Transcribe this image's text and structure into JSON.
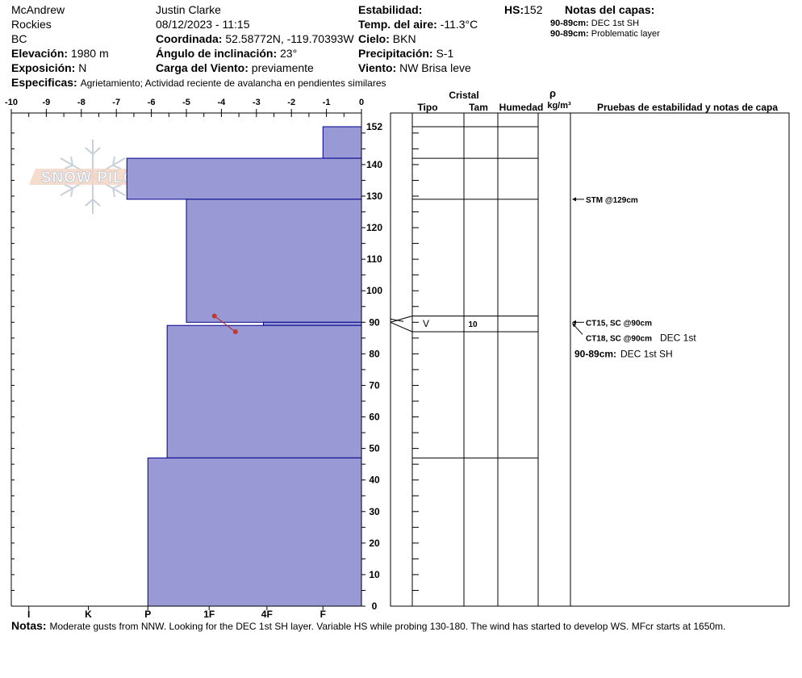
{
  "header": {
    "observer_location": "McAndrew",
    "range": "Rockies",
    "province": "BC",
    "elevation_label": "Elevación:",
    "elevation_value": "1980 m",
    "aspect_label": "Exposición:",
    "aspect_value": "N",
    "specifics_label": "Especificas:",
    "specifics_value": "Agrietamiento;  Actividad reciente de avalancha en pendientes similares",
    "observer": "Justin Clarke",
    "datetime": "08/12/2023 - 11:15",
    "coord_label": "Coordinada:",
    "coord_value": "52.58772N, -119.70393W",
    "slope_label": "Ángulo de inclinación:",
    "slope_value": "23°",
    "wind_load_label": "Carga del Viento:",
    "wind_load_value": "previamente",
    "stability_label": "Estabilidad:",
    "air_temp_label": "Temp. del aire:",
    "air_temp_value": "-11.3°C",
    "sky_label": "Cielo:",
    "sky_value": "BKN",
    "precip_label": "Precipitación:",
    "precip_value": "S-1",
    "wind_label": "Viento:",
    "wind_value": "NW Brisa leve",
    "hs_label": "HS:",
    "hs_value": "152",
    "layer_notes_title": "Notas del capas:",
    "layer_notes": [
      {
        "range": "90-89cm:",
        "text": "DEC 1st SH"
      },
      {
        "range": "90-89cm:",
        "text": "Problematic layer"
      }
    ]
  },
  "columns": {
    "crystal": "Cristal",
    "type": "Tipo",
    "size": "Tam",
    "moisture": "Humedad",
    "rho": "ρ",
    "density_unit": "kg/m³",
    "tests_title": "Pruebas de estabilidad y notas de capa"
  },
  "logo_text": "SNOW PILOT",
  "notes_label": "Notas:",
  "notes_text": "Moderate gusts from NNW. Looking for the DEC 1st SH layer. Variable HS while probing 130-180. The wind has started to develop WS. MFcr starts at 1650m.",
  "chart_data": {
    "type": "bar",
    "hs": 152,
    "y_range": [
      0,
      152
    ],
    "y_ticks": [
      0,
      10,
      20,
      30,
      40,
      50,
      60,
      70,
      80,
      90,
      100,
      110,
      120,
      130,
      140,
      152
    ],
    "x_range": [
      -10,
      0
    ],
    "x_ticks": [
      "-10",
      "-9",
      "-8",
      "-7",
      "-6",
      "-5",
      "-4",
      "-3",
      "-2",
      "-1",
      "0"
    ],
    "hardness_ticks": [
      {
        "label": "I",
        "value": -9.5
      },
      {
        "label": "K",
        "value": -7.8
      },
      {
        "label": "P",
        "value": -6.1
      },
      {
        "label": "1F",
        "value": -4.35
      },
      {
        "label": "4F",
        "value": -2.7
      },
      {
        "label": "F",
        "value": -1.1
      }
    ],
    "bar_color": "#9999d6",
    "edge_color": "#00008b",
    "layers": [
      {
        "top": 152,
        "bottom": 142,
        "hardness": -1.1
      },
      {
        "top": 142,
        "bottom": 129,
        "hardness": -6.7
      },
      {
        "top": 129,
        "bottom": 90,
        "hardness": -5.0
      },
      {
        "top": 90,
        "bottom": 89,
        "hardness": -2.8
      },
      {
        "top": 89,
        "bottom": 47,
        "hardness": -5.55
      },
      {
        "top": 47,
        "bottom": 0,
        "hardness": -6.1
      }
    ],
    "temperature_profile": [
      {
        "temp": -4.2,
        "depth": 92
      },
      {
        "temp": -3.6,
        "depth": 87
      }
    ],
    "crystal_rows": [
      {
        "top": 152,
        "bottom": 142
      },
      {
        "top": 142,
        "bottom": 129
      },
      {
        "top": 129,
        "bottom": 92
      },
      {
        "top": 92,
        "bottom": 87,
        "type": "V",
        "size": "10"
      },
      {
        "top": 87,
        "bottom": 47
      },
      {
        "top": 47,
        "bottom": 0
      }
    ],
    "tests": [
      {
        "label": "STM @129cm",
        "depth": 129
      },
      {
        "label": "CT15, SC @90cm",
        "depth": 90
      },
      {
        "label": "CT18, SC @90cm",
        "depth": 90,
        "note": "DEC 1st"
      }
    ],
    "layer_note_in_chart": {
      "range": "90-89cm:",
      "text": "DEC 1st SH"
    },
    "grid": false
  }
}
